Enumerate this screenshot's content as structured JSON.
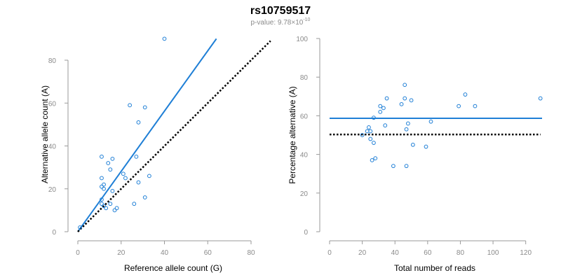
{
  "header": {
    "title": "rs10759517",
    "pvalue_prefix": "p-value: 9.78",
    "pvalue_times": "×10",
    "pvalue_exponent": "-10"
  },
  "colors": {
    "points": "#1f7fd6",
    "fit_line": "#1f7fd6",
    "reference_line": "#000000",
    "axis": "#9a9a9a"
  },
  "chart_data": [
    {
      "type": "scatter",
      "name": "allele-counts",
      "xlabel": "Reference allele count (G)",
      "ylabel": "Alternative allele count (A)",
      "xlim": [
        0,
        80
      ],
      "ylim": [
        0,
        80
      ],
      "xticks": [
        0,
        20,
        40,
        60,
        80
      ],
      "yticks": [
        0,
        20,
        40,
        60,
        80
      ],
      "points": [
        [
          1,
          2
        ],
        [
          11,
          35
        ],
        [
          11,
          25
        ],
        [
          11,
          21
        ],
        [
          11,
          15
        ],
        [
          11,
          13
        ],
        [
          12,
          12
        ],
        [
          12,
          22
        ],
        [
          12,
          20
        ],
        [
          13,
          11
        ],
        [
          14,
          32
        ],
        [
          15,
          29
        ],
        [
          15,
          13
        ],
        [
          16,
          34
        ],
        [
          16,
          19
        ],
        [
          17,
          10
        ],
        [
          18,
          11
        ],
        [
          21,
          27
        ],
        [
          22,
          25
        ],
        [
          24,
          59
        ],
        [
          26,
          13
        ],
        [
          27,
          35
        ],
        [
          28,
          51
        ],
        [
          28,
          23
        ],
        [
          31,
          58
        ],
        [
          31,
          16
        ],
        [
          33,
          26
        ],
        [
          40,
          90
        ]
      ],
      "fit_line": {
        "x": [
          0,
          64
        ],
        "y": [
          0,
          90
        ]
      },
      "reference_line": {
        "x": [
          0,
          89
        ],
        "y": [
          0,
          89
        ]
      }
    },
    {
      "type": "scatter",
      "name": "percentage-alternative",
      "xlabel": "Total number of reads",
      "ylabel": "Percentage alternative (A)",
      "xlim": [
        0,
        130
      ],
      "ylim": [
        0,
        100
      ],
      "xticks": [
        0,
        20,
        40,
        60,
        80,
        100,
        120
      ],
      "yticks": [
        0,
        20,
        40,
        60,
        80,
        100
      ],
      "points": [
        [
          20,
          50
        ],
        [
          23,
          52
        ],
        [
          24,
          54
        ],
        [
          25,
          52
        ],
        [
          25,
          48
        ],
        [
          26,
          37
        ],
        [
          27,
          59
        ],
        [
          27,
          46
        ],
        [
          28,
          38
        ],
        [
          31,
          65
        ],
        [
          31,
          62
        ],
        [
          33,
          64
        ],
        [
          34,
          55
        ],
        [
          35,
          69
        ],
        [
          39,
          34
        ],
        [
          44,
          66
        ],
        [
          46,
          76
        ],
        [
          46,
          69
        ],
        [
          47,
          34
        ],
        [
          47,
          53
        ],
        [
          48,
          56
        ],
        [
          50,
          68
        ],
        [
          51,
          45
        ],
        [
          59,
          44
        ],
        [
          62,
          57
        ],
        [
          79,
          65
        ],
        [
          83,
          71
        ],
        [
          89,
          65
        ],
        [
          129,
          69
        ]
      ],
      "fit_line": {
        "x": [
          0,
          130
        ],
        "y": [
          58.7,
          58.7
        ]
      },
      "reference_line": {
        "x": [
          0,
          129
        ],
        "y": [
          50.3,
          50.3
        ]
      }
    }
  ]
}
